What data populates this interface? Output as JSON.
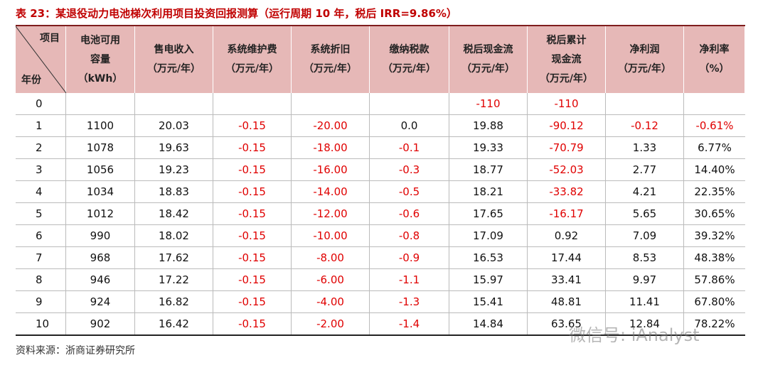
{
  "title": "表 23：某退役动力电池梯次利用项目投资回报测算（运行周期 10 年，税后 IRR=9.86%）",
  "table": {
    "corner": {
      "top": "项目",
      "bottom": "年份"
    },
    "header": [
      [
        "电池可用",
        "容量",
        "（kWh）"
      ],
      [
        "售电收入",
        "（万元/年）"
      ],
      [
        "系统维护费",
        "（万元/年）"
      ],
      [
        "系统折旧",
        "（万元/年）"
      ],
      [
        "缴纳税款",
        "（万元/年）"
      ],
      [
        "税后现金流",
        "（万元/年）"
      ],
      [
        "税后累计",
        "现金流",
        "（万元/年）"
      ],
      [
        "净利润",
        "（万元/年）"
      ],
      [
        "净利率",
        "（%）"
      ]
    ],
    "rows": [
      [
        "0",
        null,
        null,
        null,
        null,
        null,
        "-110",
        "-110",
        null,
        null
      ],
      [
        "1",
        "1100",
        "20.03",
        "-0.15",
        "-20.00",
        "0.0",
        "19.88",
        "-90.12",
        "-0.12",
        "-0.61%"
      ],
      [
        "2",
        "1078",
        "19.63",
        "-0.15",
        "-18.00",
        "-0.1",
        "19.33",
        "-70.79",
        "1.33",
        "6.77%"
      ],
      [
        "3",
        "1056",
        "19.23",
        "-0.15",
        "-16.00",
        "-0.3",
        "18.77",
        "-52.03",
        "2.77",
        "14.40%"
      ],
      [
        "4",
        "1034",
        "18.83",
        "-0.15",
        "-14.00",
        "-0.5",
        "18.21",
        "-33.82",
        "4.21",
        "22.35%"
      ],
      [
        "5",
        "1012",
        "18.42",
        "-0.15",
        "-12.00",
        "-0.6",
        "17.65",
        "-16.17",
        "5.65",
        "30.65%"
      ],
      [
        "6",
        "990",
        "18.02",
        "-0.15",
        "-10.00",
        "-0.8",
        "17.09",
        "0.92",
        "7.09",
        "39.32%"
      ],
      [
        "7",
        "968",
        "17.62",
        "-0.15",
        "-8.00",
        "-0.9",
        "16.53",
        "17.44",
        "8.53",
        "48.38%"
      ],
      [
        "8",
        "946",
        "17.22",
        "-0.15",
        "-6.00",
        "-1.1",
        "15.97",
        "33.41",
        "9.97",
        "57.86%"
      ],
      [
        "9",
        "924",
        "16.82",
        "-0.15",
        "-4.00",
        "-1.3",
        "15.41",
        "48.81",
        "11.41",
        "67.80%"
      ],
      [
        "10",
        "902",
        "16.42",
        "-0.15",
        "-2.00",
        "-1.4",
        "14.84",
        "63.65",
        "12.84",
        "78.22%"
      ]
    ]
  },
  "source": "资料来源：浙商证券研究所",
  "watermark": "微信号: iAnalyst"
}
